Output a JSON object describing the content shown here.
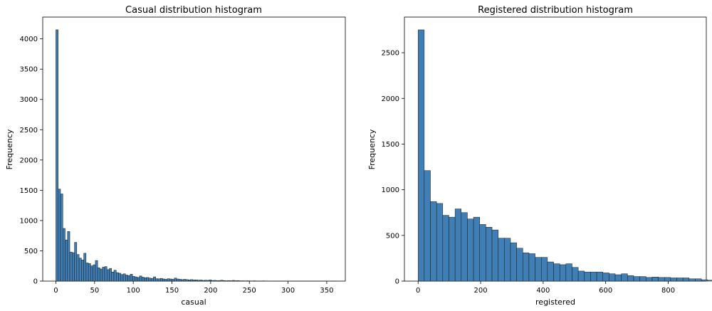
{
  "colors": {
    "bar_fill": "#3f7fb5",
    "bar_edge": "#1b1b1b",
    "axis": "#000000",
    "background": "#ffffff"
  },
  "chart_data": [
    {
      "type": "bar",
      "title": "Casual distribution histogram",
      "xlabel": "casual",
      "ylabel": "Frequency",
      "xlim": [
        -17,
        374
      ],
      "ylim": [
        0,
        4360
      ],
      "xticks": [
        0,
        50,
        100,
        150,
        200,
        250,
        300,
        350
      ],
      "yticks": [
        0,
        500,
        1000,
        1500,
        2000,
        2500,
        3000,
        3500,
        4000
      ],
      "bin_width": 3.0,
      "bin_start": 0,
      "grid": false,
      "values": [
        4150,
        1520,
        1440,
        870,
        680,
        820,
        480,
        470,
        640,
        440,
        380,
        350,
        460,
        300,
        290,
        250,
        270,
        340,
        220,
        200,
        230,
        240,
        190,
        210,
        150,
        180,
        140,
        130,
        110,
        120,
        100,
        90,
        115,
        80,
        70,
        60,
        85,
        65,
        55,
        60,
        50,
        45,
        70,
        40,
        38,
        45,
        35,
        30,
        40,
        35,
        30,
        50,
        35,
        30,
        25,
        30,
        25,
        20,
        25,
        20,
        20,
        15,
        18,
        12,
        15,
        12,
        20,
        10,
        12,
        8,
        10,
        15,
        8,
        6,
        8,
        6,
        12,
        6,
        8,
        5,
        5,
        4,
        5,
        4,
        3,
        5,
        3,
        2,
        3,
        4,
        2,
        3,
        2,
        1,
        2,
        1,
        2,
        1,
        1,
        1,
        1,
        1,
        1,
        1,
        1,
        1,
        1,
        1,
        1,
        1,
        1,
        1,
        1,
        1,
        1,
        1,
        1,
        1,
        1,
        1,
        1
      ]
    },
    {
      "type": "bar",
      "title": "Registered distribution histogram",
      "xlabel": "registered",
      "ylabel": "Frequency",
      "xlim": [
        -43.8,
        921.8
      ],
      "ylim": [
        0,
        2890
      ],
      "xticks": [
        0,
        200,
        400,
        600,
        800
      ],
      "yticks": [
        0,
        500,
        1000,
        1500,
        2000,
        2500
      ],
      "bin_width": 19.7,
      "bin_start": 0,
      "grid": false,
      "values": [
        2750,
        1210,
        870,
        850,
        720,
        700,
        790,
        750,
        680,
        700,
        620,
        590,
        560,
        470,
        470,
        420,
        360,
        310,
        300,
        260,
        260,
        210,
        190,
        180,
        190,
        150,
        110,
        100,
        100,
        100,
        90,
        80,
        70,
        80,
        60,
        50,
        50,
        40,
        45,
        40,
        40,
        35,
        35,
        35,
        25,
        25,
        15,
        10,
        8,
        6,
        4,
        2
      ]
    }
  ]
}
